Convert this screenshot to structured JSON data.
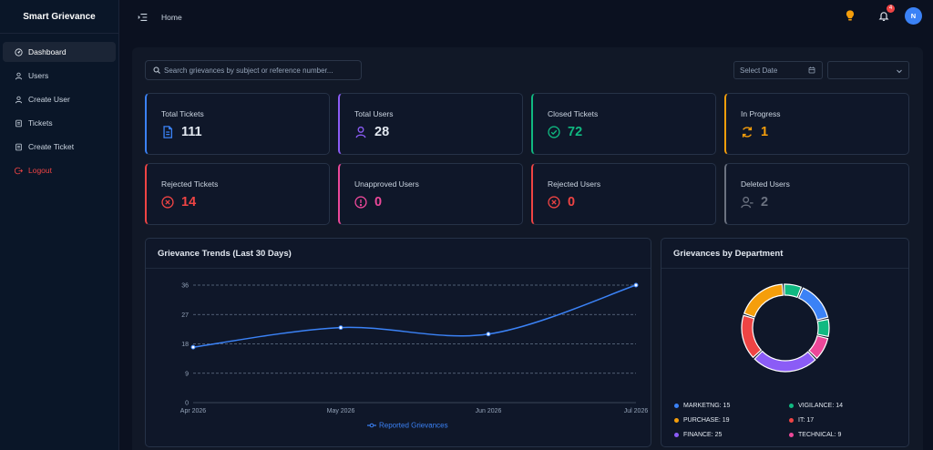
{
  "app": {
    "title": "Smart Grievance"
  },
  "sidebar": {
    "items": [
      {
        "label": "Dashboard",
        "icon": "dashboard-icon",
        "active": true
      },
      {
        "label": "Users",
        "icon": "user-icon"
      },
      {
        "label": "Create User",
        "icon": "user-icon"
      },
      {
        "label": "Tickets",
        "icon": "ticket-icon"
      },
      {
        "label": "Create Ticket",
        "icon": "ticket-icon"
      },
      {
        "label": "Logout",
        "icon": "logout-icon"
      }
    ]
  },
  "header": {
    "title": "Home",
    "notification_count": "4",
    "avatar_initial": "N"
  },
  "filters": {
    "search_placeholder": "Search grievances by subject or reference number...",
    "date_placeholder": "Select Date"
  },
  "stats": [
    {
      "label": "Total Tickets",
      "value": "111",
      "color": "#3b82f6",
      "icon": "document-icon"
    },
    {
      "label": "Total Users",
      "value": "28",
      "color": "#8b5cf6",
      "icon": "user-icon"
    },
    {
      "label": "Closed Tickets",
      "value": "72",
      "color": "#10b981",
      "icon": "check-circle-icon"
    },
    {
      "label": "In Progress",
      "value": "1",
      "color": "#f59e0b",
      "icon": "refresh-icon"
    },
    {
      "label": "Rejected Tickets",
      "value": "14",
      "color": "#ef4444",
      "icon": "x-circle-icon"
    },
    {
      "label": "Unapproved Users",
      "value": "0",
      "color": "#ec4899",
      "icon": "alert-circle-icon"
    },
    {
      "label": "Rejected Users",
      "value": "0",
      "color": "#ef4444",
      "icon": "x-circle-icon"
    },
    {
      "label": "Deleted Users",
      "value": "2",
      "color": "#6b7280",
      "icon": "user-minus-icon"
    }
  ],
  "panels": {
    "trends_title": "Grievance Trends (Last 30 Days)",
    "dept_title": "Grievances by Department"
  },
  "chart_data": [
    {
      "type": "line",
      "title": "Grievance Trends (Last 30 Days)",
      "x": [
        "Apr 2026",
        "May 2026",
        "Jun 2026",
        "Jul 2026"
      ],
      "y_ticks": [
        "0",
        "9",
        "18",
        "27",
        "36"
      ],
      "series": [
        {
          "name": "Reported Grievances",
          "values": [
            17,
            23,
            21,
            36
          ],
          "color": "#3b82f6"
        }
      ],
      "ylim": [
        0,
        36
      ],
      "grid": true,
      "legend": "bottom"
    },
    {
      "type": "pie",
      "title": "Grievances by Department",
      "slices": [
        {
          "label": "MARKETNG: 15",
          "value": 15,
          "color": "#3b82f6"
        },
        {
          "label": "VIGILANCE: 14",
          "value": 14,
          "color": "#10b981"
        },
        {
          "label": "PURCHASE: 19",
          "value": 19,
          "color": "#f59e0b"
        },
        {
          "label": "IT: 17",
          "value": 17,
          "color": "#ef4444"
        },
        {
          "label": "FINANCE: 25",
          "value": 25,
          "color": "#8b5cf6"
        },
        {
          "label": "TECHNICAL: 9",
          "value": 9,
          "color": "#ec4899"
        }
      ],
      "legend": "bottom"
    }
  ]
}
